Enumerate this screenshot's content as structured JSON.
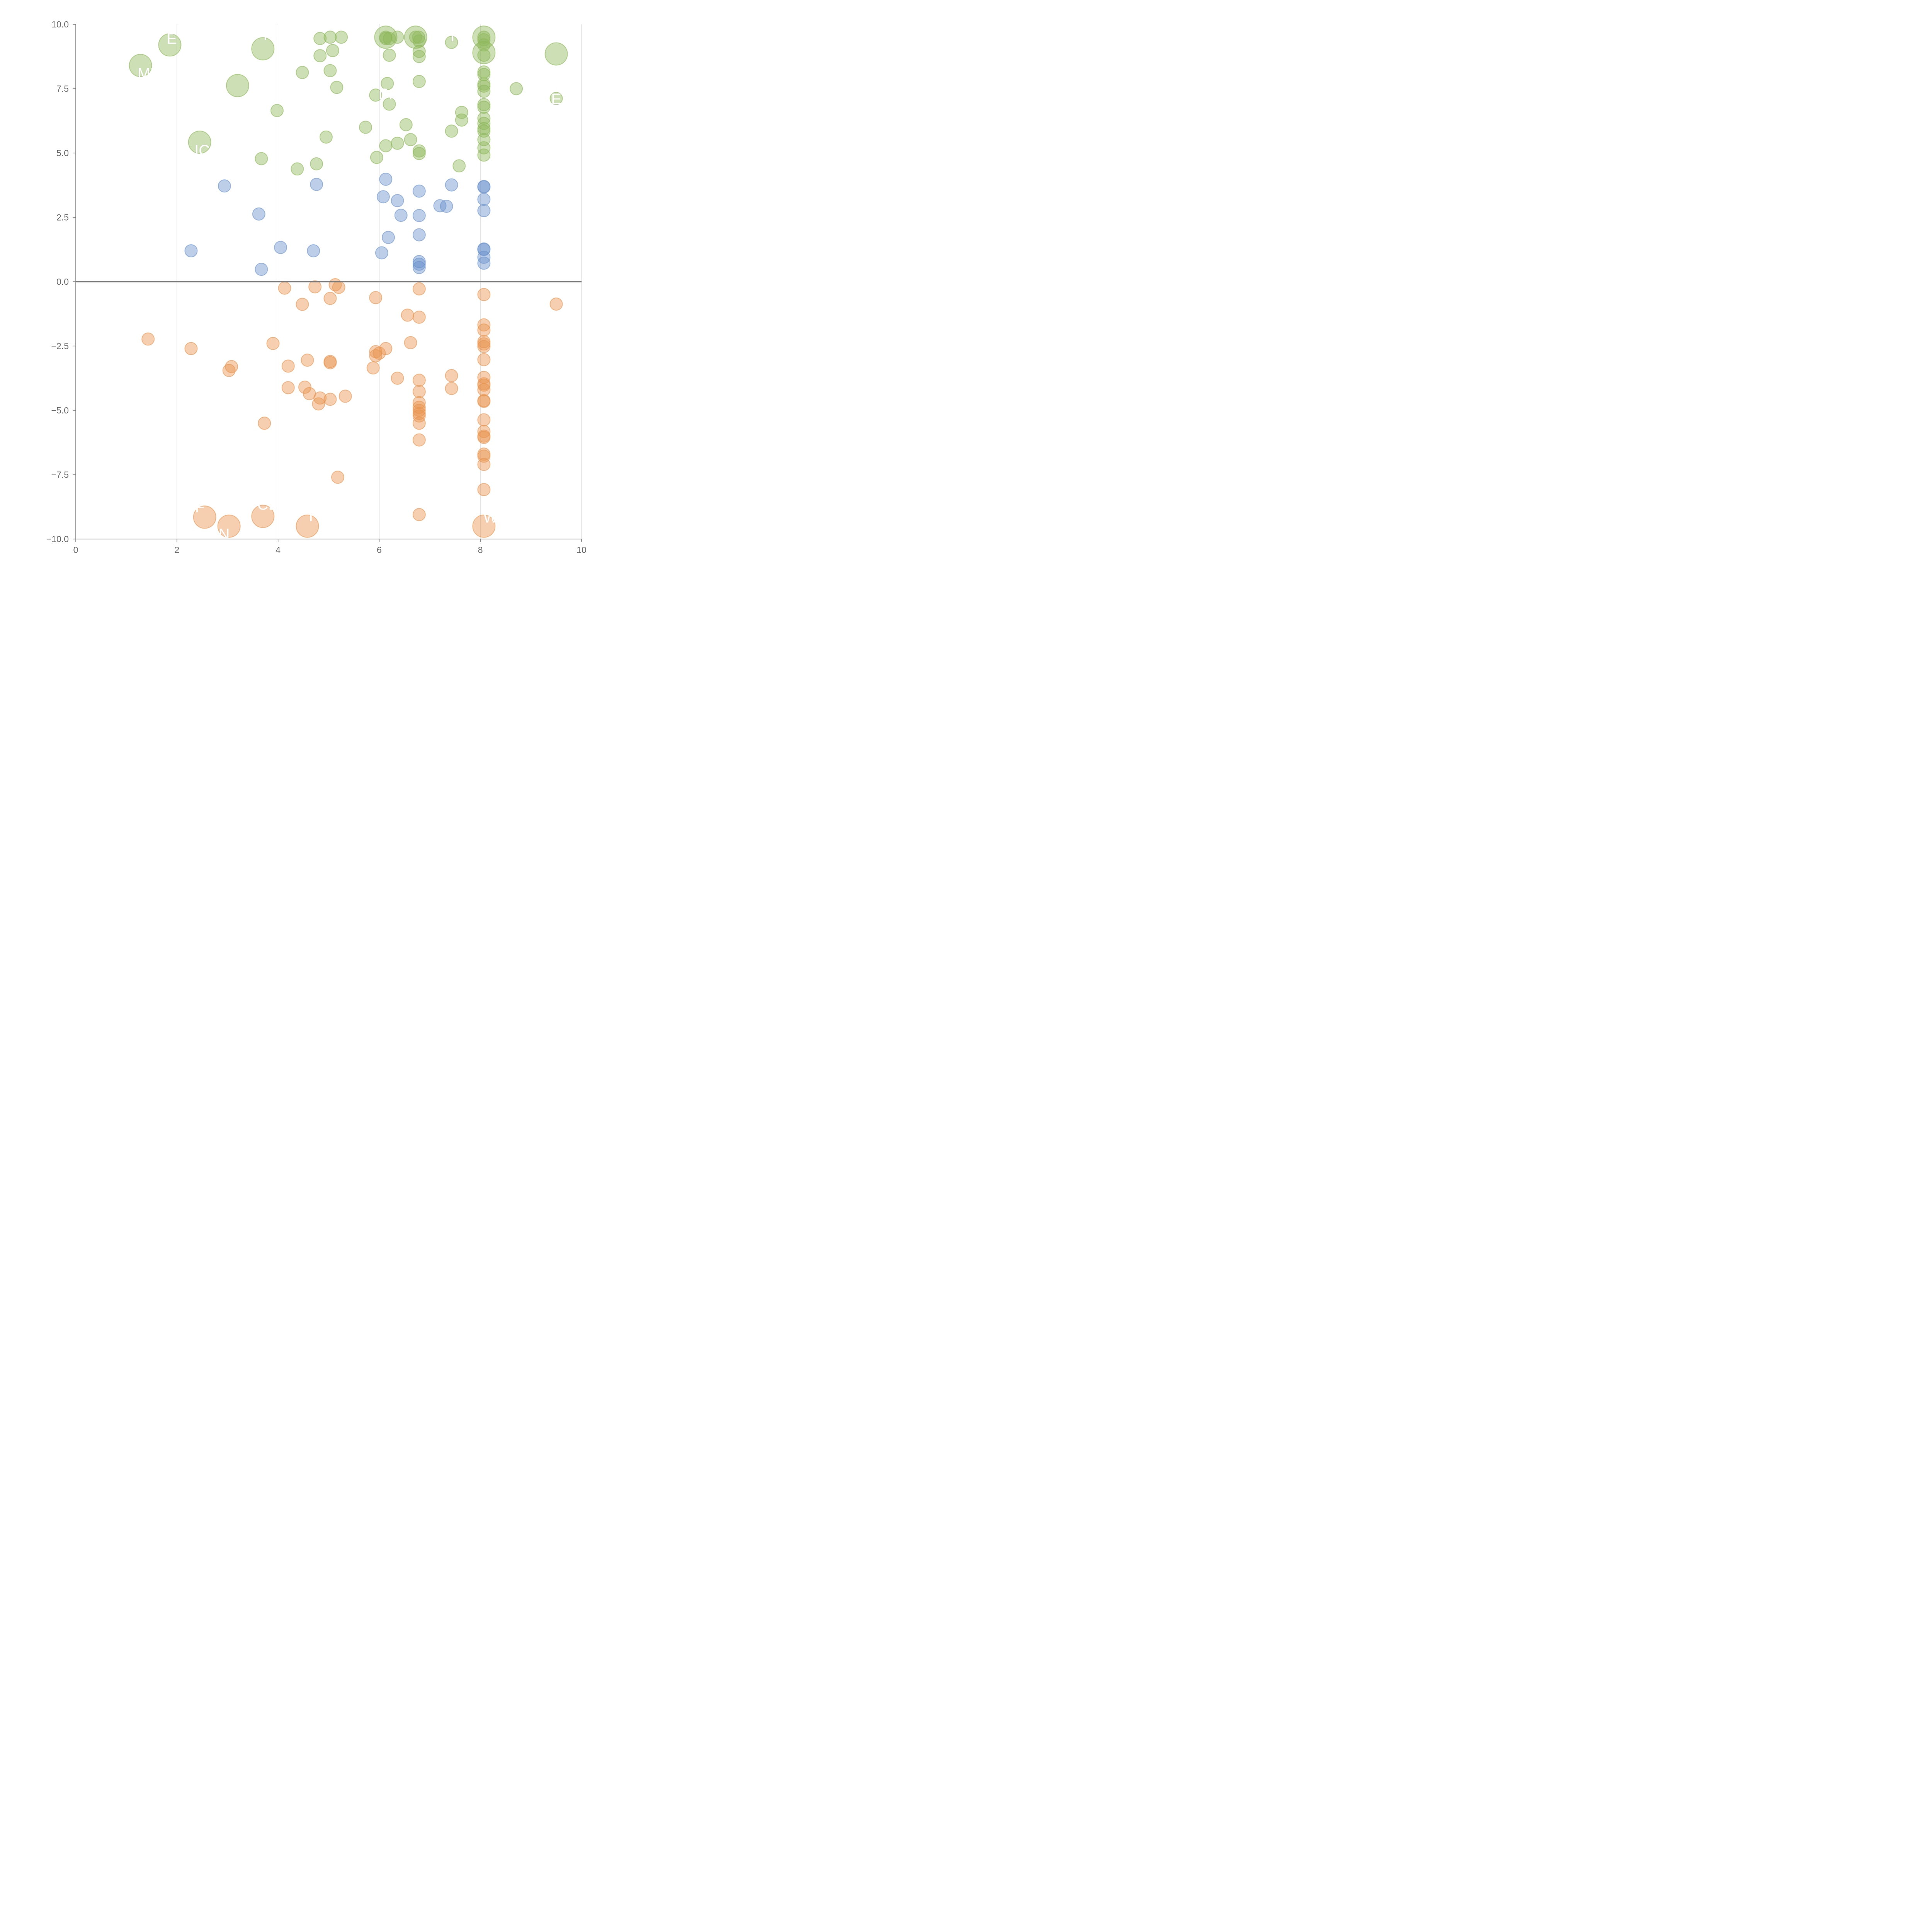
{
  "colors": {
    "positive": "#8db85a",
    "low": "#6a93cc",
    "negative": "#e8954f",
    "axis": "#777777",
    "grid": "#d4d4d4",
    "tick_text": "#666666",
    "label_text": "#ffffff"
  },
  "chart_data": {
    "type": "scatter",
    "title": "",
    "xlabel": "",
    "ylabel": "",
    "xlim": [
      0,
      10
    ],
    "ylim": [
      -10,
      10
    ],
    "x_ticks": [
      "0",
      "2",
      "4",
      "6",
      "8",
      "10"
    ],
    "y_ticks": [
      "10.0",
      "7.5",
      "5.0",
      "2.5",
      "0.0",
      "−2.5",
      "−5.0",
      "−7.5",
      "−10.0"
    ],
    "grid": "vertical",
    "legend": "none",
    "reference_line": 0,
    "series": [
      {
        "color_key": "positive",
        "points": [
          [
            6.78,
            9.5
          ],
          [
            6.72,
            9.5
          ],
          [
            6.13,
            9.5
          ],
          [
            8.07,
            9.5
          ],
          [
            5.25,
            9.5
          ],
          [
            5.03,
            9.5
          ],
          [
            4.83,
            9.45
          ],
          [
            6.36,
            9.5
          ],
          [
            6.2,
            9.45
          ],
          [
            6.13,
            9.45
          ],
          [
            8.07,
            9.4
          ],
          [
            6.79,
            9.35
          ],
          [
            8.07,
            9.2
          ],
          [
            7.43,
            9.3
          ],
          [
            6.79,
            8.95
          ],
          [
            5.08,
            8.98
          ],
          [
            8.07,
            8.8
          ],
          [
            6.79,
            8.75
          ],
          [
            6.2,
            8.8
          ],
          [
            4.83,
            8.78
          ],
          [
            8.07,
            8.15
          ],
          [
            5.03,
            8.2
          ],
          [
            4.48,
            8.13
          ],
          [
            8.07,
            8.05
          ],
          [
            6.79,
            7.78
          ],
          [
            6.16,
            7.7
          ],
          [
            8.07,
            7.68
          ],
          [
            8.07,
            7.6
          ],
          [
            5.16,
            7.55
          ],
          [
            8.71,
            7.5
          ],
          [
            8.07,
            7.4
          ],
          [
            5.93,
            7.25
          ],
          [
            6.2,
            6.9
          ],
          [
            8.07,
            6.88
          ],
          [
            8.07,
            6.78
          ],
          [
            3.98,
            6.65
          ],
          [
            7.63,
            6.58
          ],
          [
            8.07,
            6.35
          ],
          [
            7.63,
            6.28
          ],
          [
            8.07,
            6.15
          ],
          [
            6.53,
            6.1
          ],
          [
            8.07,
            5.95
          ],
          [
            5.73,
            6.0
          ],
          [
            8.07,
            5.85
          ],
          [
            7.43,
            5.85
          ],
          [
            4.95,
            5.62
          ],
          [
            8.07,
            5.52
          ],
          [
            6.62,
            5.52
          ],
          [
            6.36,
            5.38
          ],
          [
            6.13,
            5.28
          ],
          [
            8.07,
            5.2
          ],
          [
            6.79,
            5.08
          ],
          [
            6.79,
            4.98
          ],
          [
            8.07,
            4.92
          ],
          [
            5.95,
            4.83
          ],
          [
            3.67,
            4.78
          ],
          [
            4.76,
            4.58
          ],
          [
            7.58,
            4.5
          ],
          [
            4.38,
            4.38
          ],
          [
            9.5,
            7.12
          ]
        ]
      },
      {
        "color_key": "positive",
        "big": true,
        "points": [
          [
            1.28,
            8.4
          ],
          [
            1.86,
            9.2
          ],
          [
            3.7,
            9.05
          ],
          [
            3.2,
            7.62
          ],
          [
            2.45,
            5.42
          ],
          [
            6.13,
            9.5
          ],
          [
            6.72,
            9.5
          ],
          [
            8.07,
            9.5
          ],
          [
            8.07,
            8.9
          ],
          [
            9.5,
            8.85
          ]
        ]
      },
      {
        "color_key": "low",
        "points": [
          [
            2.94,
            3.72
          ],
          [
            6.13,
            3.98
          ],
          [
            4.76,
            3.78
          ],
          [
            7.43,
            3.76
          ],
          [
            8.07,
            3.7
          ],
          [
            8.07,
            3.68
          ],
          [
            6.79,
            3.52
          ],
          [
            6.08,
            3.3
          ],
          [
            6.36,
            3.15
          ],
          [
            8.07,
            3.2
          ],
          [
            7.2,
            2.95
          ],
          [
            7.33,
            2.93
          ],
          [
            8.07,
            2.76
          ],
          [
            3.62,
            2.63
          ],
          [
            6.43,
            2.58
          ],
          [
            6.79,
            2.57
          ],
          [
            6.79,
            1.82
          ],
          [
            6.18,
            1.72
          ],
          [
            4.05,
            1.33
          ],
          [
            8.07,
            1.27
          ],
          [
            8.07,
            1.25
          ],
          [
            2.28,
            1.2
          ],
          [
            4.7,
            1.2
          ],
          [
            6.05,
            1.12
          ],
          [
            8.07,
            0.95
          ],
          [
            6.79,
            0.78
          ],
          [
            8.07,
            0.72
          ],
          [
            6.79,
            0.68
          ],
          [
            6.79,
            0.55
          ],
          [
            3.67,
            0.48
          ]
        ]
      },
      {
        "color_key": "negative",
        "points": [
          [
            5.13,
            -0.12
          ],
          [
            5.2,
            -0.22
          ],
          [
            4.73,
            -0.2
          ],
          [
            4.13,
            -0.25
          ],
          [
            6.79,
            -0.28
          ],
          [
            8.07,
            -0.5
          ],
          [
            5.93,
            -0.62
          ],
          [
            5.03,
            -0.65
          ],
          [
            9.5,
            -0.87
          ],
          [
            4.48,
            -0.88
          ],
          [
            6.56,
            -1.3
          ],
          [
            6.79,
            -1.38
          ],
          [
            8.07,
            -1.68
          ],
          [
            8.07,
            -1.88
          ],
          [
            1.43,
            -2.23
          ],
          [
            8.07,
            -2.33
          ],
          [
            6.62,
            -2.37
          ],
          [
            8.07,
            -2.42
          ],
          [
            3.9,
            -2.4
          ],
          [
            8.07,
            -2.52
          ],
          [
            2.28,
            -2.6
          ],
          [
            6.13,
            -2.6
          ],
          [
            5.93,
            -2.72
          ],
          [
            6.0,
            -2.78
          ],
          [
            5.93,
            -2.88
          ],
          [
            8.07,
            -3.03
          ],
          [
            4.58,
            -3.05
          ],
          [
            5.03,
            -3.1
          ],
          [
            5.03,
            -3.15
          ],
          [
            4.2,
            -3.28
          ],
          [
            3.08,
            -3.3
          ],
          [
            5.88,
            -3.35
          ],
          [
            3.03,
            -3.45
          ],
          [
            7.43,
            -3.65
          ],
          [
            8.07,
            -3.72
          ],
          [
            6.36,
            -3.75
          ],
          [
            6.79,
            -3.83
          ],
          [
            8.07,
            -3.97
          ],
          [
            8.07,
            -4.02
          ],
          [
            4.2,
            -4.12
          ],
          [
            4.53,
            -4.1
          ],
          [
            7.43,
            -4.15
          ],
          [
            8.07,
            -4.2
          ],
          [
            6.79,
            -4.27
          ],
          [
            4.62,
            -4.35
          ],
          [
            5.33,
            -4.45
          ],
          [
            4.83,
            -4.52
          ],
          [
            5.03,
            -4.57
          ],
          [
            8.07,
            -4.62
          ],
          [
            8.07,
            -4.65
          ],
          [
            6.79,
            -4.7
          ],
          [
            4.8,
            -4.75
          ],
          [
            6.79,
            -4.88
          ],
          [
            6.79,
            -5.0
          ],
          [
            6.79,
            -5.12
          ],
          [
            6.79,
            -5.22
          ],
          [
            8.07,
            -5.37
          ],
          [
            6.79,
            -5.5
          ],
          [
            3.73,
            -5.5
          ],
          [
            8.07,
            -5.82
          ],
          [
            8.07,
            -6.0
          ],
          [
            8.07,
            -6.05
          ],
          [
            6.79,
            -6.15
          ],
          [
            8.07,
            -6.7
          ],
          [
            8.07,
            -6.78
          ],
          [
            8.07,
            -7.1
          ],
          [
            5.18,
            -7.6
          ],
          [
            8.07,
            -8.08
          ],
          [
            6.79,
            -9.05
          ]
        ]
      },
      {
        "color_key": "negative",
        "big": true,
        "points": [
          [
            2.55,
            -9.15
          ],
          [
            3.7,
            -9.12
          ],
          [
            3.03,
            -9.5
          ],
          [
            4.58,
            -9.5
          ],
          [
            8.07,
            -9.5
          ]
        ]
      }
    ],
    "annotations": [
      {
        "text": "E",
        "x": 1.9,
        "y": 9.4
      },
      {
        "text": "MX",
        "x": 1.45,
        "y": 8.05
      },
      {
        "text": "T",
        "x": 3.75,
        "y": 9.55
      },
      {
        "text": "IC",
        "x": 2.5,
        "y": 5.05
      },
      {
        "text": "T",
        "x": 7.45,
        "y": 9.5
      },
      {
        "text": "DA",
        "x": 6.2,
        "y": 7.25
      },
      {
        "text": "E",
        "x": 9.5,
        "y": 7.05
      },
      {
        "text": "SF",
        "x": 2.35,
        "y": -8.8
      },
      {
        "text": "CE",
        "x": 3.8,
        "y": -8.7
      },
      {
        "text": "TAN",
        "x": 2.75,
        "y": -9.85
      },
      {
        "text": "T",
        "x": 4.65,
        "y": -9.15
      },
      {
        "text": "W",
        "x": 8.2,
        "y": -9.2
      }
    ]
  }
}
